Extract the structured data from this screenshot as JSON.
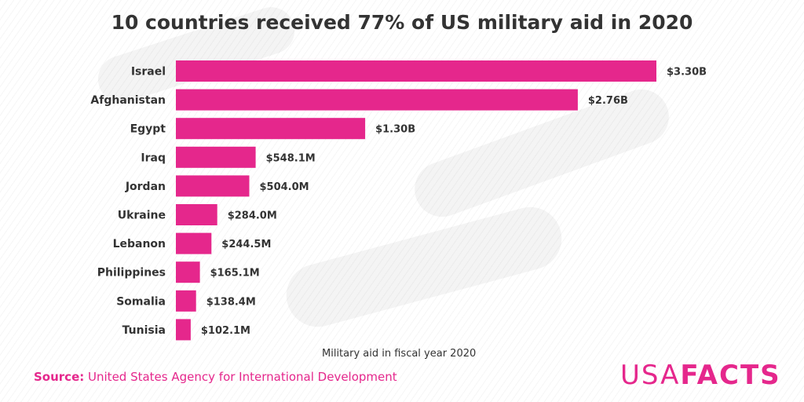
{
  "title": "10 countries received 77% of US military aid in 2020",
  "source": {
    "label": "Source:",
    "text": "United States Agency for International Development"
  },
  "logo": {
    "part1": "USA",
    "part2": "FACTS"
  },
  "colors": {
    "bar": "#e5278c",
    "text": "#333333",
    "accent": "#e5278c"
  },
  "chart_data": {
    "type": "bar",
    "orientation": "horizontal",
    "title": "10 countries received 77% of US military aid in 2020",
    "xlabel": "Military aid in fiscal year 2020",
    "ylabel": "",
    "categories": [
      "Israel",
      "Afghanistan",
      "Egypt",
      "Iraq",
      "Jordan",
      "Ukraine",
      "Lebanon",
      "Philippines",
      "Somalia",
      "Tunisia"
    ],
    "values": [
      3300,
      2760,
      1300,
      548.1,
      504.0,
      284.0,
      244.5,
      165.1,
      138.4,
      102.1
    ],
    "value_unit": "millions of US dollars",
    "value_labels": [
      "$3.30B",
      "$2.76B",
      "$1.30B",
      "$548.1M",
      "$504.0M",
      "$284.0M",
      "$244.5M",
      "$165.1M",
      "$138.4M",
      "$102.1M"
    ],
    "grid": false,
    "legend": "none"
  }
}
